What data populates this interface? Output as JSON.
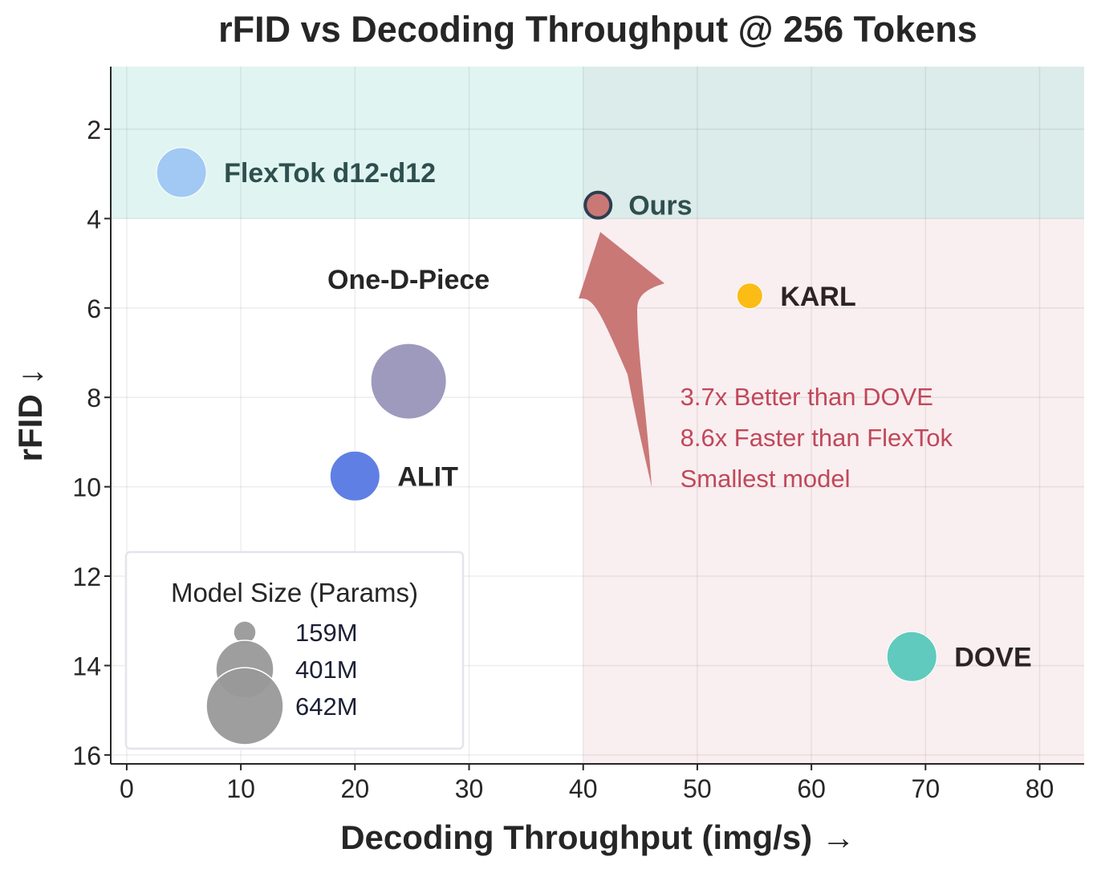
{
  "chart_data": {
    "type": "scatter",
    "title": "rFID vs Decoding Throughput @ 256 Tokens",
    "xlabel": "Decoding Throughput (img/s) →",
    "ylabel": "rFID ↓",
    "xlim": [
      -1.4,
      83.9
    ],
    "ylim": [
      16.2,
      0.6
    ],
    "y_inverted": true,
    "grid": true,
    "xticks": [
      0,
      10,
      20,
      30,
      40,
      50,
      60,
      70,
      80
    ],
    "yticks": [
      2,
      4,
      6,
      8,
      10,
      12,
      14,
      16
    ],
    "regions": [
      {
        "name": "good-rfid-band",
        "x_range": [
          -1.4,
          83.9
        ],
        "y_range": [
          0.6,
          4
        ],
        "color": "#e0f5f2"
      },
      {
        "name": "fast-throughput-band",
        "x_range": [
          40,
          83.9
        ],
        "y_range": [
          4,
          16.2
        ],
        "color": "#f9eef0"
      },
      {
        "name": "overlap-band",
        "x_range": [
          40,
          83.9
        ],
        "y_range": [
          0.6,
          4
        ],
        "color": "#dcecea"
      }
    ],
    "points": [
      {
        "name": "FlexTok d12-d12",
        "x": 4.8,
        "y": 2.97,
        "size_level": "small",
        "color": "#a1c9f4",
        "label_color": "#2f4f4f",
        "label_pos": "right"
      },
      {
        "name": "Ours",
        "x": 41.3,
        "y": 3.7,
        "size_level": "tiny",
        "color": "#c97876",
        "edge_color": "#2c3e50",
        "label_color": "#2f4f4f",
        "label_pos": "right"
      },
      {
        "name": "KARL",
        "x": 54.6,
        "y": 5.73,
        "size_level": "tiny",
        "color": "#fbbc16",
        "label_color": "#2b2325",
        "label_pos": "right"
      },
      {
        "name": "One-D-Piece",
        "x": 24.7,
        "y": 7.64,
        "size_level": "large",
        "color": "#9e9abe",
        "label_color": "#262626",
        "label_pos": "top"
      },
      {
        "name": "ALIT",
        "x": 20.0,
        "y": 9.76,
        "size_level": "small",
        "color": "#5f7fe4",
        "label_color": "#262626",
        "label_pos": "right"
      },
      {
        "name": "DOVE",
        "x": 68.8,
        "y": 13.8,
        "size_level": "small",
        "color": "#5fcabd",
        "label_color": "#2b2325",
        "label_pos": "right"
      }
    ],
    "annotations": {
      "arrow_color": "#c97876",
      "arrow_from": [
        46,
        10.0
      ],
      "arrow_to": [
        41.5,
        4.3
      ],
      "text_lines": [
        "3.7x Better than DOVE",
        "8.6x Faster than FlexTok",
        "Smallest model"
      ],
      "text_color": "#c0485a",
      "text_anchor": [
        48.5,
        8.0
      ]
    },
    "legend": {
      "title": "Model Size (Params)",
      "placement": "bottom-left",
      "entries": [
        {
          "label": "159M",
          "size_level": "tiny"
        },
        {
          "label": "401M",
          "size_level": "medium"
        },
        {
          "label": "642M",
          "size_level": "large"
        }
      ],
      "marker_color": "#999999"
    }
  }
}
